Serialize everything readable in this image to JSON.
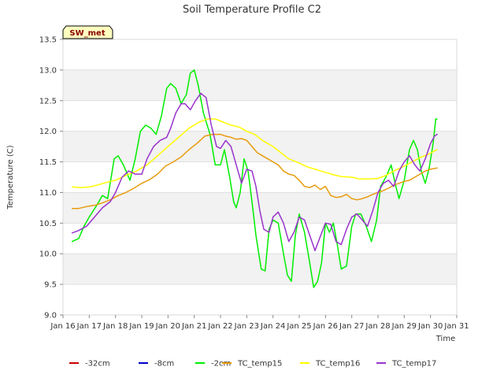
{
  "chart_data": {
    "type": "line",
    "title": "Soil Temperature Profile C2",
    "xlabel": "Time",
    "ylabel": "Temperature (C)",
    "badge": "SW_met",
    "xlim": [
      16,
      31
    ],
    "ylim": [
      9.0,
      13.5
    ],
    "xticks": [
      16,
      17,
      18,
      19,
      20,
      21,
      22,
      23,
      24,
      25,
      26,
      27,
      28,
      29,
      30,
      31
    ],
    "xtick_labels": [
      "Jan 16",
      "Jan 17",
      "Jan 18",
      "Jan 19",
      "Jan 20",
      "Jan 21",
      "Jan 22",
      "Jan 23",
      "Jan 24",
      "Jan 25",
      "Jan 26",
      "Jan 27",
      "Jan 28",
      "Jan 29",
      "Jan 30",
      "Jan 31"
    ],
    "yticks": [
      9.0,
      9.5,
      10.0,
      10.5,
      11.0,
      11.5,
      12.0,
      12.5,
      13.0,
      13.5
    ],
    "ytick_labels": [
      "9.0",
      "9.5",
      "10.0",
      "10.5",
      "11.0",
      "11.5",
      "12.0",
      "12.5",
      "13.0",
      "13.5"
    ],
    "grid_bands": "alternating horizontal",
    "legend_position": "bottom",
    "series": [
      {
        "name": "-32cm",
        "color": "#cc0000",
        "x": [],
        "y": []
      },
      {
        "name": "-8cm",
        "color": "#0000cc",
        "x": [],
        "y": []
      },
      {
        "name": "-2cm",
        "color": "#00ee00",
        "x": [
          16.35,
          16.6,
          16.8,
          17.0,
          17.3,
          17.5,
          17.7,
          17.95,
          18.1,
          18.3,
          18.55,
          18.75,
          18.95,
          19.15,
          19.35,
          19.55,
          19.75,
          19.95,
          20.1,
          20.3,
          20.5,
          20.7,
          20.85,
          21.0,
          21.15,
          21.35,
          21.6,
          21.8,
          22.0,
          22.15,
          22.35,
          22.5,
          22.6,
          22.75,
          22.9,
          23.05,
          23.2,
          23.35,
          23.55,
          23.7,
          23.85,
          24.0,
          24.2,
          24.4,
          24.55,
          24.7,
          24.85,
          25.0,
          25.2,
          25.4,
          25.55,
          25.7,
          25.85,
          26.0,
          26.15,
          26.3,
          26.45,
          26.6,
          26.8,
          27.0,
          27.15,
          27.35,
          27.55,
          27.75,
          27.95,
          28.1,
          28.3,
          28.5,
          28.65,
          28.8,
          29.0,
          29.2,
          29.35,
          29.5,
          29.65,
          29.8,
          29.95,
          30.1,
          30.2,
          30.25
        ],
        "y": [
          10.2,
          10.25,
          10.45,
          10.6,
          10.8,
          10.95,
          10.9,
          11.55,
          11.6,
          11.45,
          11.2,
          11.55,
          12.0,
          12.1,
          12.05,
          11.95,
          12.25,
          12.7,
          12.78,
          12.7,
          12.45,
          12.6,
          12.95,
          13.0,
          12.75,
          12.3,
          11.95,
          11.45,
          11.45,
          11.7,
          11.25,
          10.85,
          10.75,
          11.0,
          11.55,
          11.35,
          10.85,
          10.3,
          9.75,
          9.72,
          10.4,
          10.55,
          10.5,
          10.0,
          9.65,
          9.55,
          10.3,
          10.65,
          10.35,
          9.85,
          9.45,
          9.55,
          9.85,
          10.5,
          10.35,
          10.5,
          10.15,
          9.75,
          9.8,
          10.45,
          10.65,
          10.65,
          10.45,
          10.2,
          10.55,
          11.1,
          11.25,
          11.45,
          11.15,
          10.9,
          11.2,
          11.7,
          11.85,
          11.7,
          11.35,
          11.15,
          11.4,
          11.8,
          12.2,
          12.2
        ]
      },
      {
        "name": "TC_temp15",
        "color": "#e89b0c",
        "x": [
          16.35,
          16.6,
          16.9,
          17.2,
          17.5,
          17.8,
          18.1,
          18.4,
          18.7,
          19.0,
          19.3,
          19.6,
          19.9,
          20.2,
          20.5,
          20.8,
          21.1,
          21.4,
          21.7,
          22.0,
          22.2,
          22.4,
          22.6,
          22.8,
          23.0,
          23.2,
          23.4,
          23.6,
          23.8,
          24.0,
          24.2,
          24.4,
          24.6,
          24.8,
          25.0,
          25.2,
          25.4,
          25.6,
          25.8,
          26.0,
          26.2,
          26.4,
          26.6,
          26.8,
          27.0,
          27.2,
          27.4,
          27.6,
          27.8,
          28.0,
          28.2,
          28.4,
          28.6,
          28.8,
          29.0,
          29.2,
          29.4,
          29.6,
          29.8,
          30.0,
          30.25
        ],
        "y": [
          10.74,
          10.74,
          10.77,
          10.79,
          10.83,
          10.88,
          10.95,
          11.0,
          11.07,
          11.15,
          11.21,
          11.3,
          11.43,
          11.5,
          11.58,
          11.7,
          11.8,
          11.92,
          11.95,
          11.95,
          11.92,
          11.9,
          11.87,
          11.88,
          11.85,
          11.75,
          11.65,
          11.6,
          11.55,
          11.5,
          11.45,
          11.35,
          11.3,
          11.28,
          11.2,
          11.1,
          11.08,
          11.12,
          11.05,
          11.1,
          10.95,
          10.92,
          10.93,
          10.97,
          10.9,
          10.88,
          10.9,
          10.93,
          10.97,
          11.0,
          11.03,
          11.07,
          11.12,
          11.15,
          11.18,
          11.2,
          11.25,
          11.3,
          11.35,
          11.38,
          11.4
        ]
      },
      {
        "name": "TC_temp16",
        "color": "#ffff00",
        "x": [
          16.35,
          16.7,
          17.0,
          17.3,
          17.7,
          18.0,
          18.4,
          18.8,
          19.2,
          19.6,
          20.0,
          20.4,
          20.8,
          21.2,
          21.5,
          21.8,
          22.1,
          22.4,
          22.7,
          23.0,
          23.3,
          23.6,
          24.0,
          24.3,
          24.6,
          25.0,
          25.3,
          25.6,
          26.0,
          26.3,
          26.6,
          27.0,
          27.3,
          27.6,
          28.0,
          28.3,
          28.6,
          29.0,
          29.3,
          29.6,
          29.9,
          30.25
        ],
        "y": [
          11.09,
          11.08,
          11.09,
          11.12,
          11.17,
          11.2,
          11.28,
          11.35,
          11.45,
          11.6,
          11.75,
          11.9,
          12.05,
          12.15,
          12.2,
          12.2,
          12.15,
          12.1,
          12.07,
          12.0,
          11.95,
          11.85,
          11.75,
          11.65,
          11.55,
          11.48,
          11.42,
          11.38,
          11.33,
          11.29,
          11.26,
          11.25,
          11.22,
          11.22,
          11.23,
          11.28,
          11.35,
          11.43,
          11.5,
          11.57,
          11.62,
          11.7
        ]
      },
      {
        "name": "TC_temp17",
        "color": "#9933cc",
        "x": [
          16.35,
          16.6,
          16.9,
          17.2,
          17.5,
          17.8,
          18.0,
          18.25,
          18.5,
          18.75,
          19.0,
          19.2,
          19.45,
          19.7,
          19.95,
          20.1,
          20.3,
          20.5,
          20.65,
          20.85,
          21.05,
          21.25,
          21.45,
          21.65,
          21.85,
          22.0,
          22.2,
          22.4,
          22.6,
          22.8,
          23.0,
          23.2,
          23.35,
          23.5,
          23.65,
          23.85,
          24.0,
          24.2,
          24.4,
          24.6,
          24.8,
          25.0,
          25.2,
          25.4,
          25.6,
          25.8,
          26.0,
          26.2,
          26.4,
          26.6,
          26.8,
          27.0,
          27.2,
          27.4,
          27.6,
          27.8,
          28.0,
          28.2,
          28.4,
          28.6,
          28.8,
          29.0,
          29.2,
          29.4,
          29.6,
          29.8,
          30.0,
          30.15,
          30.25
        ],
        "y": [
          10.34,
          10.38,
          10.45,
          10.6,
          10.75,
          10.85,
          11.0,
          11.25,
          11.35,
          11.3,
          11.3,
          11.55,
          11.75,
          11.85,
          11.9,
          12.05,
          12.3,
          12.45,
          12.45,
          12.35,
          12.5,
          12.62,
          12.55,
          12.1,
          11.75,
          11.72,
          11.85,
          11.75,
          11.45,
          11.15,
          11.38,
          11.35,
          11.1,
          10.7,
          10.4,
          10.35,
          10.6,
          10.68,
          10.5,
          10.2,
          10.35,
          10.6,
          10.55,
          10.3,
          10.05,
          10.28,
          10.5,
          10.48,
          10.2,
          10.15,
          10.4,
          10.6,
          10.65,
          10.55,
          10.45,
          10.7,
          11.0,
          11.15,
          11.2,
          11.1,
          11.35,
          11.5,
          11.6,
          11.45,
          11.35,
          11.55,
          11.8,
          11.92,
          11.95
        ]
      }
    ]
  }
}
